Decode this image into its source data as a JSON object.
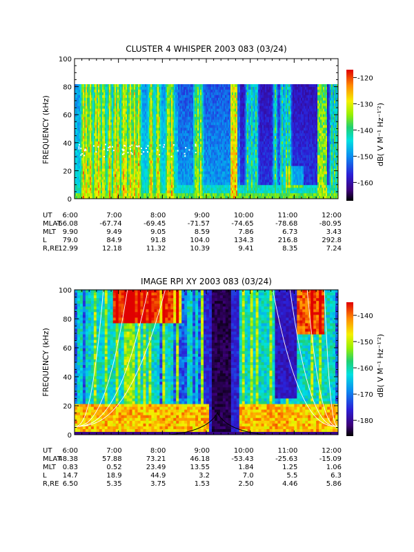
{
  "chart_data": [
    {
      "type": "heatmap",
      "title": "CLUSTER 4 WHISPER 2003 083 (03/24)",
      "ylabel": "FREQUENCY (kHz)",
      "ylim": [
        0,
        100
      ],
      "y_ticks": [
        "0",
        "20",
        "40",
        "60",
        "80",
        "100"
      ],
      "x_ticks": [
        "6:00",
        "7:00",
        "8:00",
        "9:00",
        "10:00",
        "11:00",
        "12:00"
      ],
      "data_top_khz": 80,
      "colorbar": {
        "label": "dB( V M⁻¹ Hz⁻¹′²)",
        "label_plain": "dB( V M-1 Hz-1/2)",
        "ticks": [
          "-120",
          "-130",
          "-140",
          "-150",
          "-160"
        ],
        "range": [
          -167,
          -117
        ]
      },
      "ephemeris": {
        "labels": [
          "UT",
          "MLAT",
          "MLT",
          "L",
          "R,RE"
        ],
        "rows": [
          [
            "6:00",
            "7:00",
            "8:00",
            "9:00",
            "10:00",
            "11:00",
            "12:00"
          ],
          [
            "-66.08",
            "-67.74",
            "-69.45",
            "-71.57",
            "-74.65",
            "-78.68",
            "-80.95"
          ],
          [
            "9.90",
            "9.49",
            "9.05",
            "8.59",
            "7.86",
            "6.73",
            "3.43"
          ],
          [
            "79.0",
            "84.9",
            "91.8",
            "104.0",
            "134.3",
            "216.8",
            "292.8"
          ],
          [
            "12.99",
            "12.18",
            "11.32",
            "10.39",
            "9.41",
            "8.35",
            "7.24"
          ]
        ]
      }
    },
    {
      "type": "heatmap",
      "title": "IMAGE RPI XY 2003 083 (03/24)",
      "ylabel": "FREQUENCY (kHz)",
      "ylim": [
        0,
        100
      ],
      "y_ticks": [
        "0",
        "20",
        "40",
        "60",
        "80",
        "100"
      ],
      "x_ticks": [
        "6:00",
        "7:00",
        "8:00",
        "9:00",
        "10:00",
        "11:00",
        "12:00"
      ],
      "colorbar": {
        "label": "dB( V M⁻¹ Hz⁻¹′²)",
        "label_plain": "dB( V M-1 Hz-1/2)",
        "ticks": [
          "-140",
          "-150",
          "-160",
          "-170",
          "-180"
        ],
        "range": [
          -186,
          -135
        ]
      },
      "ephemeris": {
        "labels": [
          "UT",
          "MLAT",
          "MLT",
          "L",
          "R,RE"
        ],
        "rows": [
          [
            "6:00",
            "7:00",
            "8:00",
            "9:00",
            "10:00",
            "11:00",
            "12:00"
          ],
          [
            "48.38",
            "57.88",
            "73.21",
            "46.18",
            "-53.43",
            "-25.63",
            "-15.09"
          ],
          [
            "0.83",
            "0.52",
            "23.49",
            "13.55",
            "1.84",
            "1.25",
            "1.06"
          ],
          [
            "14.7",
            "18.9",
            "44.9",
            "3.2",
            "7.0",
            "5.5",
            "6.3"
          ],
          [
            "6.50",
            "5.35",
            "3.75",
            "1.53",
            "2.50",
            "4.46",
            "5.86"
          ]
        ]
      }
    }
  ]
}
